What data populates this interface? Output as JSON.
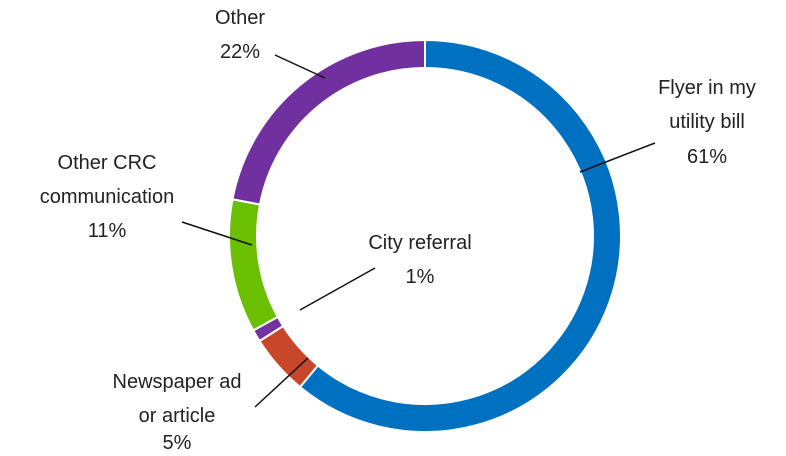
{
  "chart_data": {
    "type": "donut",
    "categories": [
      "Flyer in my utility bill",
      "Newspaper ad or article",
      "City referral",
      "Other CRC communication",
      "Other"
    ],
    "values": [
      61,
      5,
      1,
      11,
      22
    ],
    "value_labels": [
      "61%",
      "5%",
      "1%",
      "11%",
      "22%"
    ],
    "colors": [
      "#0070c0",
      "#c8472a",
      "#7232a0",
      "#6abf00",
      "#7030a0"
    ]
  }
}
